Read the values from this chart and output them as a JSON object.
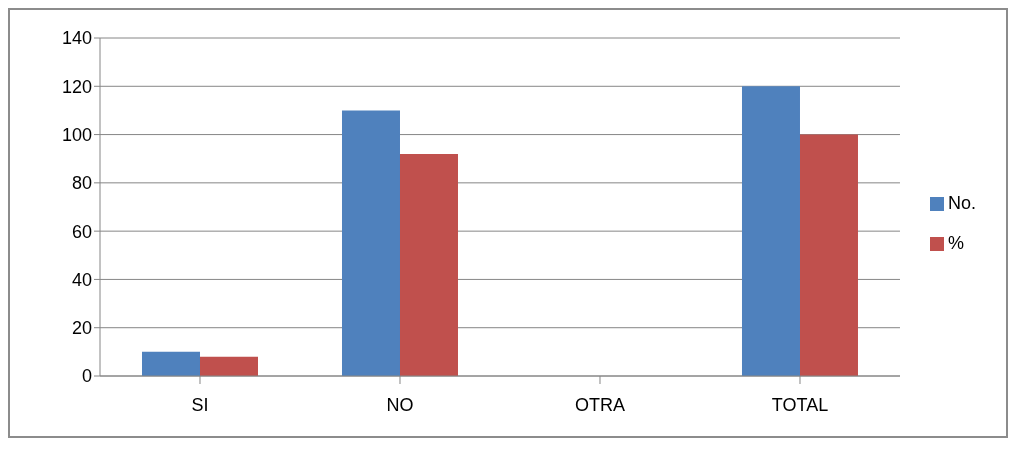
{
  "chart_data": {
    "type": "bar",
    "categories": [
      "SI",
      "NO",
      "OTRA",
      "TOTAL"
    ],
    "series": [
      {
        "name": "No.",
        "color": "#4f81bd",
        "values": [
          10,
          110,
          0,
          120
        ]
      },
      {
        "name": "%",
        "color": "#c0504d",
        "values": [
          8,
          92,
          0,
          100
        ]
      }
    ],
    "ylim": [
      0,
      140
    ],
    "yticks": [
      0,
      20,
      40,
      60,
      80,
      100,
      120,
      140
    ],
    "grid": "y",
    "legend": "right"
  }
}
